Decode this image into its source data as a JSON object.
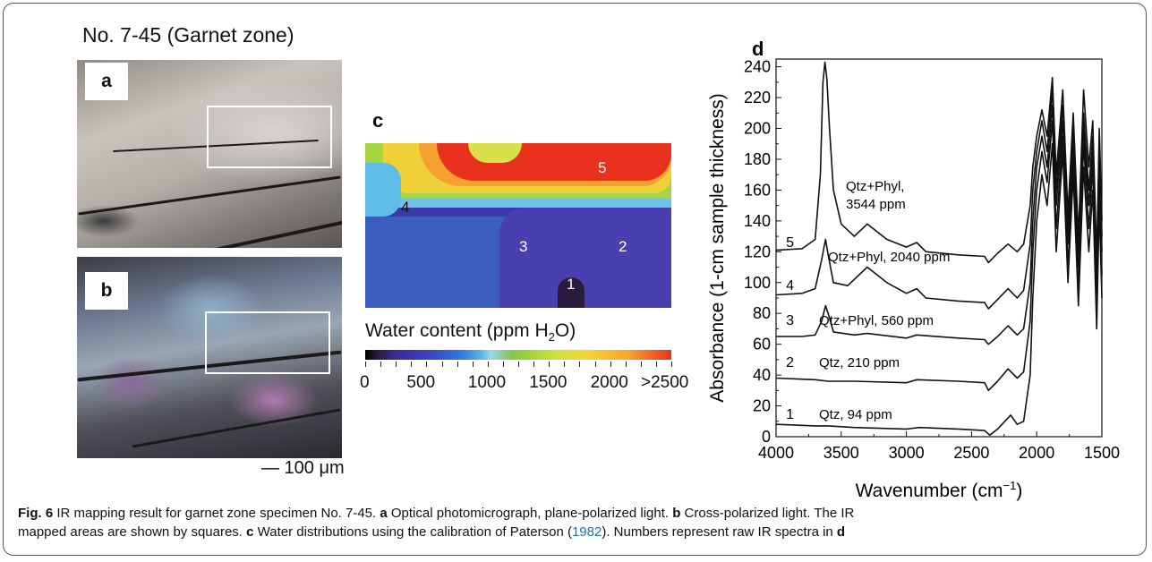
{
  "panel_a": {
    "title": "No. 7-45 (Garnet zone)",
    "label": "a"
  },
  "panel_b": {
    "label": "b"
  },
  "scale_bar": "— 100 μm",
  "panel_c": {
    "label": "c",
    "point_labels": [
      "5",
      "4",
      "3",
      "2",
      "1"
    ],
    "colorbar_title_prefix": "Water content (ppm H",
    "colorbar_title_sub": "2",
    "colorbar_title_suffix": "O)",
    "colorbar_ticks": [
      "0",
      "500",
      "1000",
      "1500",
      "2000",
      ">2500"
    ]
  },
  "panel_d": {
    "label": "d"
  },
  "chart_data": {
    "type": "line",
    "xlabel": "Wavenumber (cm",
    "xlabel_sup": "−1",
    "xlabel_suffix": ")",
    "ylabel": "Absorbance (1-cm sample thickness)",
    "xlim": [
      4000,
      1500
    ],
    "ylim": [
      0,
      245
    ],
    "xticks": [
      "4000",
      "3500",
      "3000",
      "2500",
      "2000",
      "1500"
    ],
    "xtick_values": [
      4000,
      3500,
      3000,
      2500,
      2000,
      1500
    ],
    "yticks": [
      "0",
      "20",
      "40",
      "60",
      "80",
      "100",
      "120",
      "140",
      "160",
      "180",
      "200",
      "220",
      "240"
    ],
    "ytick_values": [
      0,
      20,
      40,
      60,
      80,
      100,
      120,
      140,
      160,
      180,
      200,
      220,
      240
    ],
    "series": [
      {
        "name": "1",
        "annotation": "Qtz, 94 ppm",
        "x": [
          4000,
          3700,
          3600,
          3400,
          3000,
          2900,
          2600,
          2400,
          2360,
          2300,
          2200,
          2150,
          2100,
          2050,
          2030,
          2000,
          1960,
          1920,
          1880,
          1850,
          1800,
          1760,
          1720,
          1680,
          1640,
          1600,
          1570,
          1540,
          1520,
          1500
        ],
        "y": [
          8,
          7,
          7,
          6,
          5,
          6,
          5,
          4,
          1,
          5,
          14,
          8,
          10,
          40,
          90,
          140,
          170,
          150,
          190,
          120,
          185,
          100,
          170,
          85,
          175,
          120,
          160,
          70,
          150,
          90
        ]
      },
      {
        "name": "2",
        "annotation": "Qtz, 210 ppm",
        "x": [
          4000,
          3700,
          3600,
          3400,
          3000,
          2920,
          2600,
          2400,
          2370,
          2300,
          2220,
          2150,
          2100,
          2050,
          2030,
          2000,
          1960,
          1920,
          1880,
          1850,
          1800,
          1760,
          1720,
          1680,
          1640,
          1600,
          1570,
          1540,
          1520,
          1500
        ],
        "y": [
          38,
          37,
          36,
          36,
          35,
          37,
          36,
          35,
          30,
          36,
          44,
          38,
          42,
          75,
          120,
          160,
          185,
          165,
          205,
          135,
          195,
          110,
          180,
          95,
          190,
          135,
          175,
          80,
          165,
          105
        ]
      },
      {
        "name": "3",
        "annotation": "Qtz+Phyl, 560 ppm",
        "x": [
          4000,
          3800,
          3700,
          3650,
          3620,
          3600,
          3560,
          3400,
          3300,
          3000,
          2920,
          2600,
          2400,
          2370,
          2300,
          2220,
          2150,
          2100,
          2050,
          2030,
          2000,
          1960,
          1920,
          1880,
          1850,
          1800,
          1760,
          1720,
          1680,
          1640,
          1600,
          1570,
          1540,
          1520,
          1500
        ],
        "y": [
          65,
          65,
          66,
          75,
          85,
          80,
          68,
          66,
          67,
          64,
          66,
          64,
          63,
          60,
          65,
          72,
          66,
          70,
          100,
          140,
          175,
          195,
          175,
          215,
          150,
          205,
          125,
          190,
          110,
          200,
          150,
          185,
          95,
          180,
          120
        ]
      },
      {
        "name": "4",
        "annotation": "Qtz+Phyl, 2040 ppm",
        "x": [
          4000,
          3800,
          3700,
          3650,
          3620,
          3600,
          3560,
          3450,
          3300,
          3150,
          3000,
          2920,
          2850,
          2600,
          2400,
          2370,
          2300,
          2220,
          2150,
          2100,
          2050,
          2030,
          2000,
          1960,
          1920,
          1880,
          1850,
          1800,
          1760,
          1720,
          1680,
          1640,
          1600,
          1570,
          1540,
          1520,
          1500
        ],
        "y": [
          92,
          93,
          96,
          115,
          128,
          118,
          100,
          98,
          110,
          100,
          93,
          96,
          90,
          88,
          87,
          83,
          89,
          96,
          90,
          95,
          125,
          160,
          185,
          205,
          185,
          225,
          160,
          215,
          135,
          200,
          120,
          210,
          160,
          195,
          105,
          190,
          130
        ]
      },
      {
        "name": "5",
        "annotation": "Qtz+Phyl,\n3544 ppm",
        "x": [
          4000,
          3800,
          3700,
          3660,
          3640,
          3625,
          3610,
          3590,
          3560,
          3500,
          3400,
          3300,
          3150,
          3000,
          2920,
          2850,
          2600,
          2400,
          2370,
          2300,
          2220,
          2150,
          2100,
          2050,
          2030,
          2000,
          1960,
          1920,
          1880,
          1850,
          1800,
          1760,
          1720,
          1680,
          1640,
          1600,
          1570,
          1540,
          1520,
          1500
        ],
        "y": [
          121,
          122,
          128,
          170,
          230,
          243,
          232,
          200,
          160,
          138,
          130,
          138,
          128,
          123,
          126,
          120,
          118,
          117,
          113,
          119,
          125,
          120,
          125,
          150,
          175,
          195,
          212,
          195,
          233,
          170,
          225,
          145,
          210,
          130,
          225,
          175,
          205,
          115,
          200,
          140
        ]
      }
    ]
  },
  "caption": {
    "fig": "Fig. 6",
    "t1": "  IR mapping result for garnet zone specimen No. 7-45. ",
    "a": "a",
    "t2": " Optical photomicrograph, plane-polarized light. ",
    "b": "b",
    "t3": " Cross-polarized light. The IR",
    "t4": "mapped areas are shown by squares. ",
    "c": "c",
    "t5": " Water distributions using the calibration of Paterson (",
    "year": "1982",
    "t6": "). Numbers represent raw IR spectra in ",
    "d": "d"
  }
}
